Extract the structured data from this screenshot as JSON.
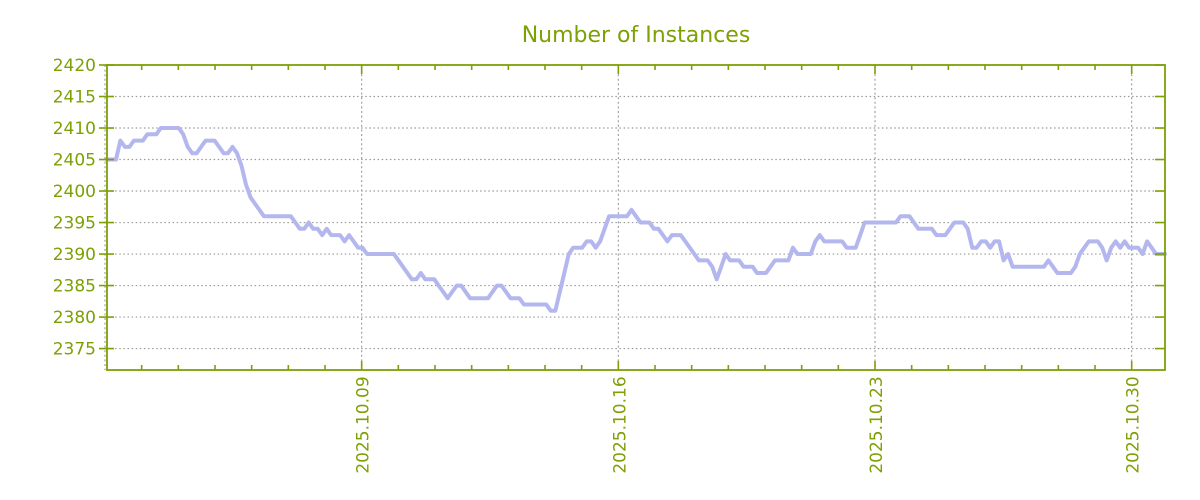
{
  "title": "Number of Instances",
  "colors": {
    "accent_green": "#7da004",
    "line": "#b3b7ee",
    "grid": "#9a9a9a",
    "background": "#ffffff"
  },
  "chart_data": {
    "type": "line",
    "title": "Number of Instances",
    "xlabel": "",
    "ylabel": "",
    "grid": true,
    "legend": "none",
    "x_start_date": "2025.10.02",
    "x_end_date": "2025.10.31",
    "points_per_day": 8,
    "x_tick_labels": [
      "2025.10.09",
      "2025.10.16",
      "2025.10.23",
      "2025.10.30"
    ],
    "x_tick_point_indices": [
      57,
      114,
      172,
      229
    ],
    "y_ticks": [
      2375,
      2380,
      2385,
      2390,
      2395,
      2400,
      2405,
      2410,
      2415,
      2420
    ],
    "ylim": [
      2371.6,
      2420
    ],
    "series": [
      {
        "name": "instances",
        "values": [
          2405,
          2405,
          2405,
          2408,
          2407,
          2407,
          2408,
          2408,
          2408,
          2409,
          2409,
          2409,
          2410,
          2410,
          2410,
          2410,
          2410,
          2409,
          2407,
          2406,
          2406,
          2407,
          2408,
          2408,
          2408,
          2407,
          2406,
          2406,
          2407,
          2406,
          2404,
          2401,
          2399,
          2398,
          2397,
          2396,
          2396,
          2396,
          2396,
          2396,
          2396,
          2396,
          2395,
          2394,
          2394,
          2395,
          2394,
          2394,
          2393,
          2394,
          2393,
          2393,
          2393,
          2392,
          2393,
          2392,
          2391,
          2391,
          2390,
          2390,
          2390,
          2390,
          2390,
          2390,
          2390,
          2389,
          2388,
          2387,
          2386,
          2386,
          2387,
          2386,
          2386,
          2386,
          2385,
          2384,
          2383,
          2384,
          2385,
          2385,
          2384,
          2383,
          2383,
          2383,
          2383,
          2383,
          2384,
          2385,
          2385,
          2384,
          2383,
          2383,
          2383,
          2382,
          2382,
          2382,
          2382,
          2382,
          2382,
          2381,
          2381,
          2384,
          2387,
          2390,
          2391,
          2391,
          2391,
          2392,
          2392,
          2391,
          2392,
          2394,
          2396,
          2396,
          2396,
          2396,
          2396,
          2397,
          2396,
          2395,
          2395,
          2395,
          2394,
          2394,
          2393,
          2392,
          2393,
          2393,
          2393,
          2392,
          2391,
          2390,
          2389,
          2389,
          2389,
          2388,
          2386,
          2388,
          2390,
          2389,
          2389,
          2389,
          2388,
          2388,
          2388,
          2387,
          2387,
          2387,
          2388,
          2389,
          2389,
          2389,
          2389,
          2391,
          2390,
          2390,
          2390,
          2390,
          2392,
          2393,
          2392,
          2392,
          2392,
          2392,
          2392,
          2391,
          2391,
          2391,
          2393,
          2395,
          2395,
          2395,
          2395,
          2395,
          2395,
          2395,
          2395,
          2396,
          2396,
          2396,
          2395,
          2394,
          2394,
          2394,
          2394,
          2393,
          2393,
          2393,
          2394,
          2395,
          2395,
          2395,
          2394,
          2391,
          2391,
          2392,
          2392,
          2391,
          2392,
          2392,
          2389,
          2390,
          2388,
          2388,
          2388,
          2388,
          2388,
          2388,
          2388,
          2388,
          2389,
          2388,
          2387,
          2387,
          2387,
          2387,
          2388,
          2390,
          2391,
          2392,
          2392,
          2392,
          2391,
          2389,
          2391,
          2392,
          2391,
          2392,
          2391,
          2391,
          2391,
          2390,
          2392,
          2391,
          2390,
          2390,
          2390
        ]
      }
    ]
  }
}
